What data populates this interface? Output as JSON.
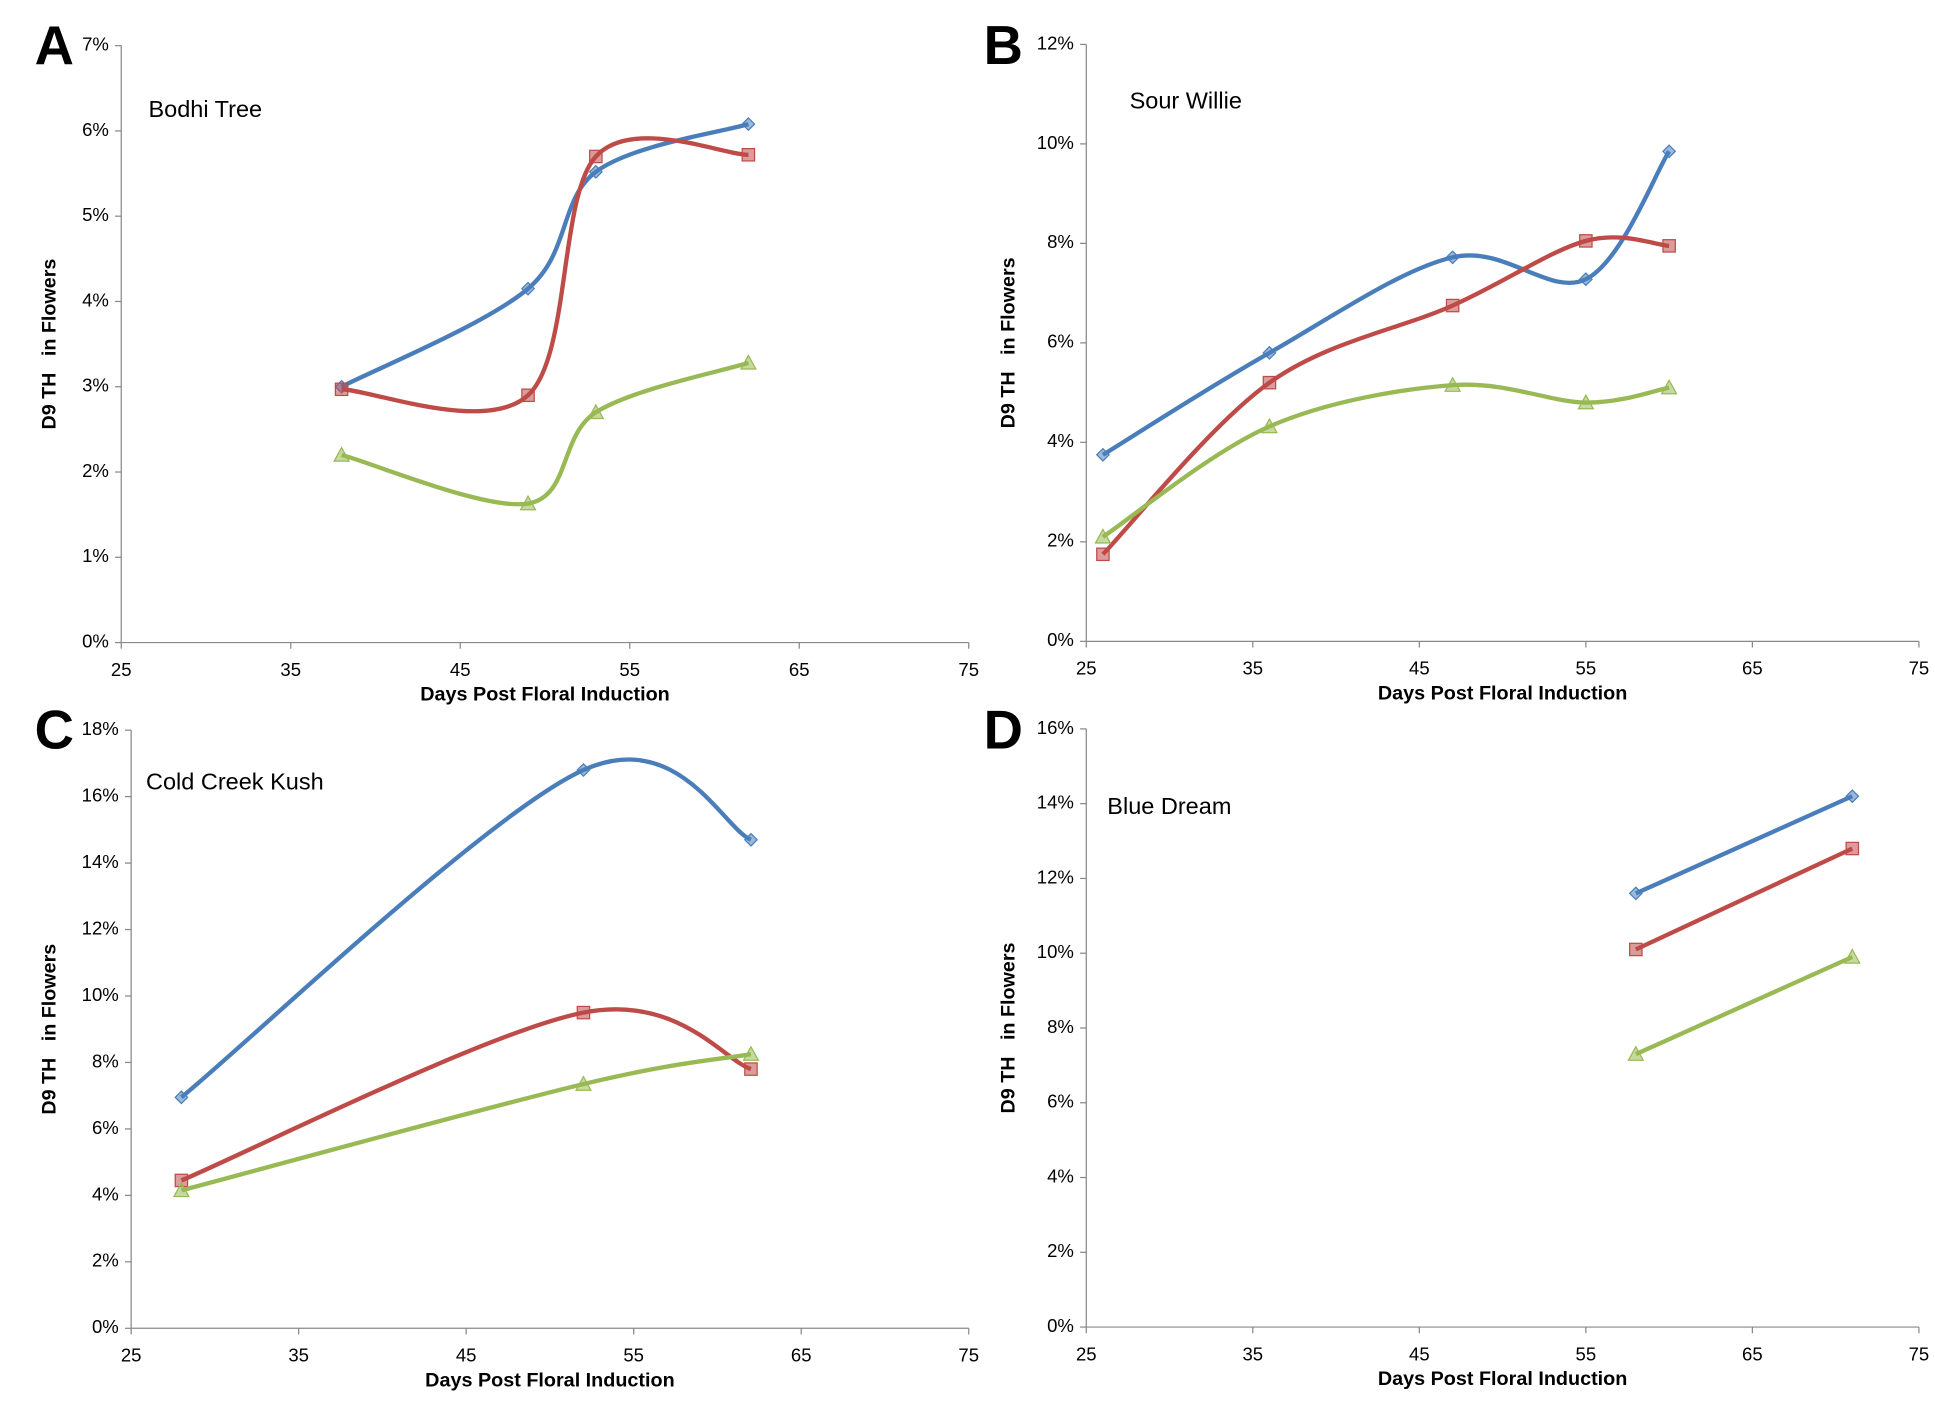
{
  "chart_data": [
    {
      "type": "line",
      "panel": "A",
      "title": "Bodhi Tree",
      "xlabel": "Days Post Floral Induction",
      "ylabel": "D9 TH   in Flowers",
      "smooth": true,
      "x": [
        38,
        49,
        53,
        62
      ],
      "xlim": [
        25,
        75
      ],
      "xticks": [
        25,
        35,
        45,
        55,
        65,
        75
      ],
      "ylim": [
        0,
        7
      ],
      "yticks": [
        {
          "value": 0,
          "label": "0%"
        },
        {
          "value": 1,
          "label": "1%"
        },
        {
          "value": 2,
          "label": "2%"
        },
        {
          "value": 3,
          "label": "3%"
        },
        {
          "value": 4,
          "label": "4%"
        },
        {
          "value": 5,
          "label": "5%"
        },
        {
          "value": 6,
          "label": "6%"
        },
        {
          "value": 7,
          "label": "7%"
        }
      ],
      "series": [
        {
          "color": "#4a7ebb",
          "marker": "diamond",
          "values": [
            3.0,
            4.15,
            5.52,
            6.08
          ]
        },
        {
          "color": "#be4b48",
          "marker": "square",
          "values": [
            2.97,
            2.9,
            5.7,
            5.72
          ]
        },
        {
          "color": "#98b954",
          "marker": "triangle",
          "values": [
            2.2,
            1.63,
            2.7,
            3.28
          ]
        }
      ]
    },
    {
      "type": "line",
      "panel": "B",
      "title": "Sour Willie",
      "xlabel": "Days Post Floral Induction",
      "ylabel": "D9 TH   in Flowers",
      "smooth": true,
      "x": [
        26,
        36,
        47,
        55,
        60
      ],
      "xlim": [
        25,
        75
      ],
      "xticks": [
        25,
        35,
        45,
        55,
        65,
        75
      ],
      "ylim": [
        0,
        12
      ],
      "yticks": [
        {
          "value": 0,
          "label": "0%"
        },
        {
          "value": 2,
          "label": "2%"
        },
        {
          "value": 4,
          "label": "4%"
        },
        {
          "value": 6,
          "label": "6%"
        },
        {
          "value": 8,
          "label": "8%"
        },
        {
          "value": 10,
          "label": "10%"
        },
        {
          "value": 12,
          "label": "12%"
        }
      ],
      "series": [
        {
          "color": "#4a7ebb",
          "marker": "diamond",
          "values": [
            3.75,
            5.8,
            7.72,
            7.28,
            9.85
          ]
        },
        {
          "color": "#be4b48",
          "marker": "square",
          "values": [
            1.75,
            5.2,
            6.75,
            8.05,
            7.95
          ]
        },
        {
          "color": "#98b954",
          "marker": "triangle",
          "values": [
            2.1,
            4.32,
            5.15,
            4.8,
            5.1
          ]
        }
      ]
    },
    {
      "type": "line",
      "panel": "C",
      "title": "Cold Creek Kush",
      "xlabel": "Days Post Floral Induction",
      "ylabel": "D9 TH   in Flowers",
      "smooth": true,
      "x": [
        28,
        52,
        62
      ],
      "xlim": [
        25,
        75
      ],
      "xticks": [
        25,
        35,
        45,
        55,
        65,
        75
      ],
      "ylim": [
        0,
        18
      ],
      "yticks": [
        {
          "value": 0,
          "label": "0%"
        },
        {
          "value": 2,
          "label": "2%"
        },
        {
          "value": 4,
          "label": "4%"
        },
        {
          "value": 6,
          "label": "6%"
        },
        {
          "value": 8,
          "label": "8%"
        },
        {
          "value": 10,
          "label": "10%"
        },
        {
          "value": 12,
          "label": "12%"
        },
        {
          "value": 14,
          "label": "14%"
        },
        {
          "value": 16,
          "label": "16%"
        },
        {
          "value": 18,
          "label": "18%"
        }
      ],
      "series": [
        {
          "color": "#4a7ebb",
          "marker": "diamond",
          "values": [
            6.95,
            16.8,
            14.7
          ]
        },
        {
          "color": "#be4b48",
          "marker": "square",
          "values": [
            4.45,
            9.5,
            7.8
          ]
        },
        {
          "color": "#98b954",
          "marker": "triangle",
          "values": [
            4.15,
            7.35,
            8.25
          ]
        }
      ]
    },
    {
      "type": "line",
      "panel": "D",
      "title": "Blue Dream",
      "xlabel": "Days Post Floral Induction",
      "ylabel": "D9 TH   in Flowers",
      "smooth": false,
      "x": [
        58,
        71
      ],
      "xlim": [
        25,
        75
      ],
      "xticks": [
        25,
        35,
        45,
        55,
        65,
        75
      ],
      "ylim": [
        0,
        16
      ],
      "yticks": [
        {
          "value": 0,
          "label": "0%"
        },
        {
          "value": 2,
          "label": "2%"
        },
        {
          "value": 4,
          "label": "4%"
        },
        {
          "value": 6,
          "label": "6%"
        },
        {
          "value": 8,
          "label": "8%"
        },
        {
          "value": 10,
          "label": "10%"
        },
        {
          "value": 12,
          "label": "12%"
        },
        {
          "value": 14,
          "label": "14%"
        },
        {
          "value": 16,
          "label": "16%"
        }
      ],
      "series": [
        {
          "color": "#4a7ebb",
          "marker": "diamond",
          "values": [
            11.6,
            14.2
          ]
        },
        {
          "color": "#be4b48",
          "marker": "square",
          "values": [
            10.1,
            12.8
          ]
        },
        {
          "color": "#98b954",
          "marker": "triangle",
          "values": [
            7.3,
            9.9
          ]
        }
      ]
    }
  ]
}
